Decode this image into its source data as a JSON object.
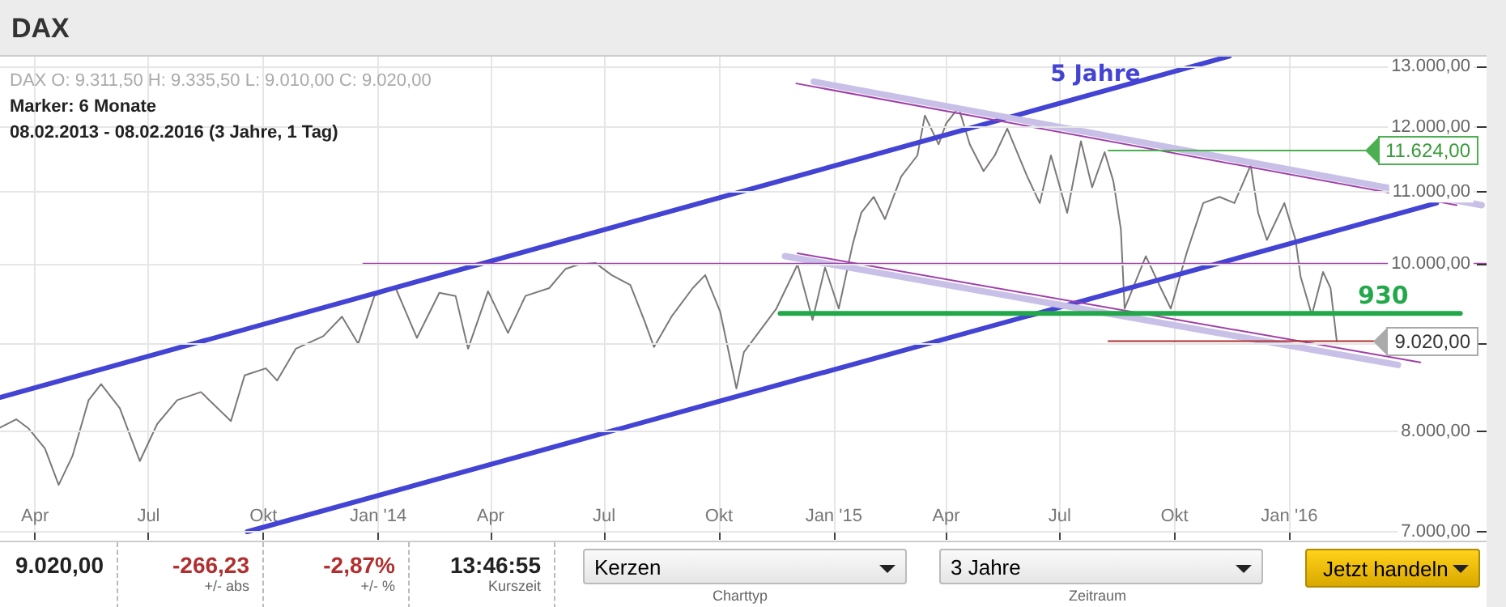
{
  "chart_data": {
    "type": "line",
    "title": "DAX",
    "annotations": [
      "DAX   O: 9.311,50   H: 9.335,50   L: 9.010,00   C: 9.020,00",
      "Marker: 6 Monate",
      "08.02.2013 - 08.02.2016 (3 Jahre, 1 Tag)",
      "5 Jahre",
      "930",
      "11.624,00",
      "9.020,00",
      "9.020,00",
      "-266,23",
      "+/- abs",
      "-2,87%",
      "+/- %",
      "13:46:55",
      "Kurszeit",
      "Kerzen",
      "Charttyp",
      "3 Jahre",
      "Zeitraum",
      "Jetzt handeln"
    ],
    "series": [
      {
        "color": "#7d7878",
        "x": [
          "2013-03-04",
          "2013-03-17",
          "2013-03-27",
          "2013-04-09",
          "2013-04-20",
          "2013-05-01",
          "2013-05-14",
          "2013-05-24",
          "2013-06-08",
          "2013-06-24",
          "2013-07-08",
          "2013-07-24",
          "2013-08-12",
          "2013-09-05",
          "2013-09-16",
          "2013-10-03",
          "2013-10-12",
          "2013-10-27",
          "2013-11-18",
          "2013-12-03",
          "2013-12-16",
          "2013-12-29",
          "2014-01-15",
          "2014-02-01",
          "2014-02-19",
          "2014-03-04",
          "2014-03-14",
          "2014-03-30",
          "2014-04-15",
          "2014-04-29",
          "2014-05-18",
          "2014-05-31",
          "2014-06-11",
          "2014-06-24",
          "2014-07-07",
          "2014-07-22",
          "2014-08-02",
          "2014-08-10",
          "2014-08-24",
          "2014-09-10",
          "2014-09-20",
          "2014-10-02",
          "2014-10-15",
          "2014-10-21",
          "2014-11-16",
          "2014-12-03",
          "2014-12-15",
          "2014-12-25",
          "2015-01-05",
          "2015-01-16",
          "2015-01-23",
          "2015-02-02",
          "2015-02-11",
          "2015-02-24",
          "2015-03-09",
          "2015-03-15",
          "2015-03-26",
          "2015-04-01",
          "2015-04-11",
          "2015-04-20",
          "2015-05-01",
          "2015-05-10",
          "2015-05-20",
          "2015-06-05",
          "2015-06-15",
          "2015-06-24",
          "2015-07-07",
          "2015-07-18",
          "2015-07-27",
          "2015-08-06",
          "2015-08-13",
          "2015-08-19",
          "2015-08-22",
          "2015-09-08",
          "2015-09-20",
          "2015-09-28",
          "2015-10-11",
          "2015-10-24",
          "2015-11-06",
          "2015-11-18",
          "2015-12-01",
          "2015-12-07",
          "2015-12-14",
          "2015-12-28",
          "2016-01-06",
          "2016-01-10",
          "2016-01-19",
          "2016-01-28",
          "2016-02-03",
          "2016-02-08"
        ],
        "values": [
          8040,
          8130,
          8030,
          7820,
          7450,
          7740,
          8340,
          8520,
          8250,
          7690,
          8080,
          8340,
          8430,
          8110,
          8620,
          8700,
          8560,
          8930,
          9080,
          9320,
          8990,
          9580,
          9680,
          9060,
          9620,
          9580,
          8930,
          9640,
          9120,
          9580,
          9680,
          9930,
          9990,
          10010,
          9850,
          9720,
          9280,
          8950,
          9320,
          9680,
          9850,
          9380,
          8470,
          8890,
          9420,
          9990,
          9280,
          9950,
          9420,
          10250,
          10700,
          10930,
          10610,
          11230,
          11550,
          12180,
          11720,
          12050,
          12310,
          11720,
          11310,
          11550,
          11970,
          11230,
          10840,
          11550,
          10700,
          11770,
          11070,
          11600,
          11160,
          10470,
          9420,
          10100,
          9680,
          9420,
          10160,
          10840,
          10930,
          10840,
          11400,
          10700,
          10320,
          10840,
          10320,
          9830,
          9340,
          9890,
          9680,
          9020
        ]
      },
      {
        "type": "line",
        "color": "#4343d4",
        "x": [
          "2013-03-04",
          "2015-11-14"
        ],
        "values": [
          8370,
          13180
        ]
      },
      {
        "type": "line",
        "color": "#4343d4",
        "x": [
          "2013-09-18",
          "2016-04-28"
        ],
        "values": [
          7000,
          10840
        ]
      },
      {
        "type": "line",
        "color": "#c8c0e6",
        "x": [
          "2014-12-16",
          "2016-06-03"
        ],
        "values": [
          12740,
          10810
        ]
      },
      {
        "type": "line",
        "color": "#a040a8",
        "x": [
          "2014-12-02",
          "2016-05-14"
        ],
        "values": [
          12710,
          10810
        ]
      },
      {
        "type": "line",
        "color": "#c8c0e6",
        "x": [
          "2014-11-23",
          "2016-03-28"
        ],
        "values": [
          10100,
          8740
        ]
      },
      {
        "type": "line",
        "color": "#a040a8",
        "x": [
          "2014-12-03",
          "2016-04-15"
        ],
        "values": [
          10140,
          8770
        ]
      },
      {
        "type": "line",
        "color": "#a040a8",
        "x": [
          "2013-12-20",
          "2016-06-07"
        ],
        "values": [
          10000,
          10000
        ]
      },
      {
        "type": "line",
        "color": "#22a84a",
        "x": [
          "2014-11-19",
          "2016-05-17"
        ],
        "values": [
          9360,
          9360
        ]
      },
      {
        "type": "line",
        "color": "#4caf50",
        "x": [
          "2015-08-09",
          "2016-03-11"
        ],
        "values": [
          11624,
          11624
        ]
      },
      {
        "type": "line",
        "color": "#b03030",
        "x": [
          "2015-08-09",
          "2016-03-11"
        ],
        "values": [
          9020,
          9020
        ]
      }
    ],
    "xlim": [
      "2013-03-04",
      "2016-06-07"
    ],
    "xticks": [
      {
        "value": "2013-04-01",
        "label": "Apr"
      },
      {
        "value": "2013-07-01",
        "label": "Jul"
      },
      {
        "value": "2013-10-01",
        "label": "Okt"
      },
      {
        "value": "2014-01-01",
        "label": "Jan '14"
      },
      {
        "value": "2014-04-01",
        "label": "Apr"
      },
      {
        "value": "2014-07-01",
        "label": "Jul"
      },
      {
        "value": "2014-10-01",
        "label": "Okt"
      },
      {
        "value": "2015-01-01",
        "label": "Jan '15"
      },
      {
        "value": "2015-04-01",
        "label": "Apr"
      },
      {
        "value": "2015-07-01",
        "label": "Jul"
      },
      {
        "value": "2015-10-01",
        "label": "Okt"
      },
      {
        "value": "2016-01-01",
        "label": "Jan '16"
      }
    ],
    "ylim": [
      7000,
      13200
    ],
    "yticks": [
      {
        "value": 7000,
        "label": "7.000,00"
      },
      {
        "value": 8000,
        "label": "8.000,00"
      },
      {
        "value": 9000,
        "label": null
      },
      {
        "value": 10000,
        "label": "10.000,00"
      },
      {
        "value": 11000,
        "label": "11.000,00"
      },
      {
        "value": 12000,
        "label": "12.000,00"
      },
      {
        "value": 13000,
        "label": "13.000,00"
      }
    ],
    "log": true,
    "grid": true,
    "marker": "none",
    "line_style": "solid"
  }
}
